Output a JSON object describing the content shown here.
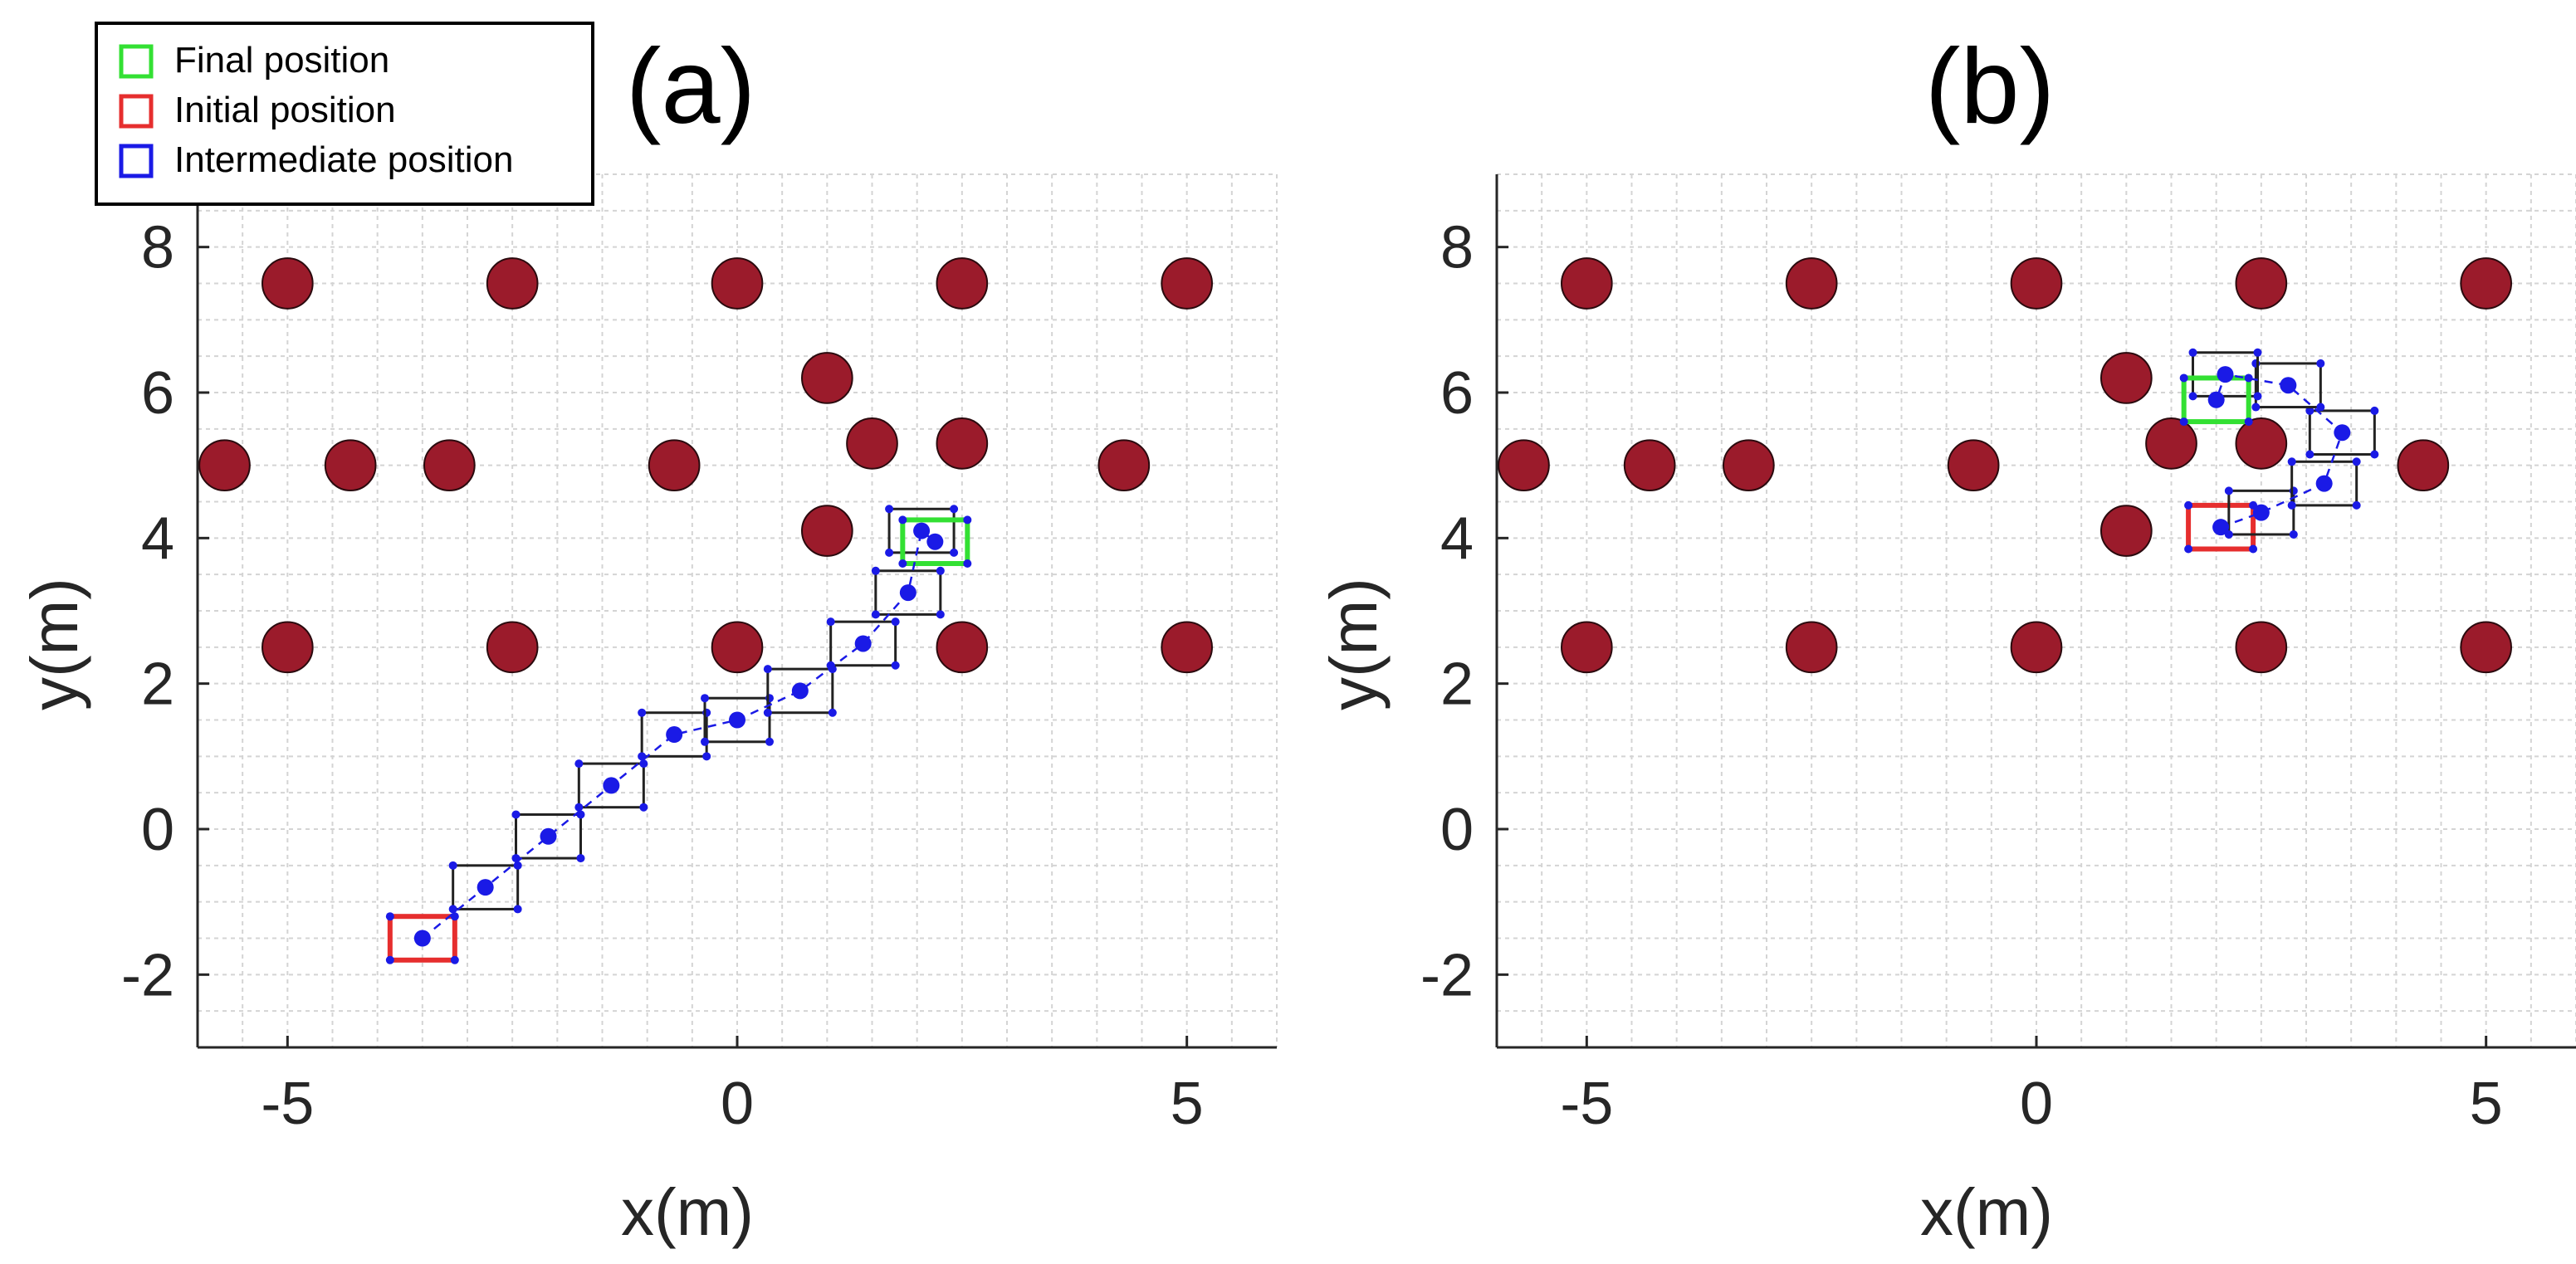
{
  "colors": {
    "obstacle": "#9b1b2b",
    "final": "#33e033",
    "initial": "#e62e2e",
    "intermediate": "#1a1ae6",
    "box": "#222222",
    "grid": "#d4d4d4",
    "axis": "#262626"
  },
  "legend": {
    "items": [
      {
        "label": "Final position",
        "color": "#33e033"
      },
      {
        "label": "Initial position",
        "color": "#e62e2e"
      },
      {
        "label": "Intermediate position",
        "color": "#1a1ae6"
      }
    ]
  },
  "chart_data": [
    {
      "type": "scatter",
      "title": "(a)",
      "xlabel": "x(m)",
      "ylabel": "y(m)",
      "xlim": [
        -6,
        6
      ],
      "ylim": [
        -3,
        9
      ],
      "xticks": [
        -5,
        0,
        5
      ],
      "yticks": [
        -2,
        0,
        2,
        4,
        6,
        8
      ],
      "grid": true,
      "obstacle_radius": 0.28,
      "obstacles": [
        [
          -5,
          7.5
        ],
        [
          -2.5,
          7.5
        ],
        [
          0,
          7.5
        ],
        [
          2.5,
          7.5
        ],
        [
          5,
          7.5
        ],
        [
          1,
          6.2
        ],
        [
          -5.7,
          5
        ],
        [
          -4.3,
          5
        ],
        [
          -3.2,
          5
        ],
        [
          -0.7,
          5
        ],
        [
          1.5,
          5.3
        ],
        [
          2.5,
          5.3
        ],
        [
          4.3,
          5
        ],
        [
          1,
          4.1
        ],
        [
          -5,
          2.5
        ],
        [
          -2.5,
          2.5
        ],
        [
          0,
          2.5
        ],
        [
          2.5,
          2.5
        ],
        [
          5,
          2.5
        ]
      ],
      "robot_size": [
        0.72,
        0.6
      ],
      "trajectory": [
        [
          -3.5,
          -1.5
        ],
        [
          -2.8,
          -0.8
        ],
        [
          -2.1,
          -0.1
        ],
        [
          -1.4,
          0.6
        ],
        [
          -0.7,
          1.3
        ],
        [
          0,
          1.5
        ],
        [
          0.7,
          1.9
        ],
        [
          1.4,
          2.55
        ],
        [
          1.9,
          3.25
        ],
        [
          2.05,
          4.1
        ],
        [
          2.2,
          3.95
        ]
      ],
      "initial": [
        -3.5,
        -1.5
      ],
      "final": [
        2.05,
        4.1
      ]
    },
    {
      "type": "scatter",
      "title": "(b)",
      "xlabel": "x(m)",
      "ylabel": "y(m)",
      "xlim": [
        -6,
        6
      ],
      "ylim": [
        -3,
        9
      ],
      "xticks": [
        -5,
        0,
        5
      ],
      "yticks": [
        -2,
        0,
        2,
        4,
        6,
        8
      ],
      "grid": true,
      "obstacle_radius": 0.28,
      "obstacles": [
        [
          -5,
          7.5
        ],
        [
          -2.5,
          7.5
        ],
        [
          0,
          7.5
        ],
        [
          2.5,
          7.5
        ],
        [
          5,
          7.5
        ],
        [
          1,
          6.2
        ],
        [
          -5.7,
          5
        ],
        [
          -4.3,
          5
        ],
        [
          -3.2,
          5
        ],
        [
          -0.7,
          5
        ],
        [
          1.5,
          5.3
        ],
        [
          2.5,
          5.3
        ],
        [
          4.3,
          5
        ],
        [
          1,
          4.1
        ],
        [
          -5,
          2.5
        ],
        [
          -2.5,
          2.5
        ],
        [
          0,
          2.5
        ],
        [
          2.5,
          2.5
        ],
        [
          5,
          2.5
        ]
      ],
      "robot_size": [
        0.72,
        0.6
      ],
      "trajectory": [
        [
          2.05,
          4.15
        ],
        [
          2.5,
          4.35
        ],
        [
          3.2,
          4.75
        ],
        [
          3.4,
          5.45
        ],
        [
          2.8,
          6.1
        ],
        [
          2.1,
          6.25
        ],
        [
          2.0,
          5.9
        ]
      ],
      "initial": [
        2.05,
        4.15
      ],
      "final": [
        2.0,
        5.9
      ]
    }
  ]
}
